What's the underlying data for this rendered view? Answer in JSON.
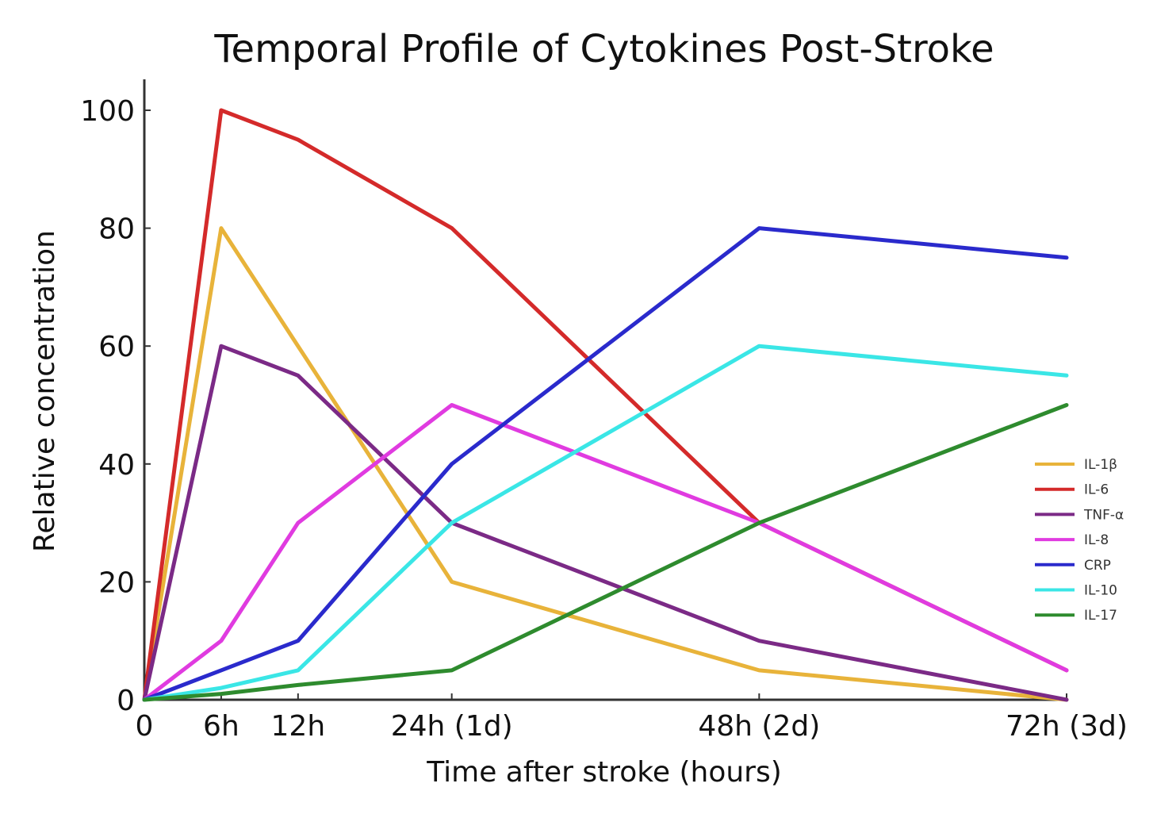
{
  "chart_data": {
    "type": "line",
    "title": "Temporal Profile of Cytokines Post-Stroke",
    "xlabel": "Time after stroke (hours)",
    "ylabel": "Relative concentration",
    "x": [
      0,
      6,
      12,
      24,
      48,
      72
    ],
    "x_tick_labels": [
      "0",
      "6h",
      "12h",
      "24h (1d)",
      "48h (2d)",
      "72h (3d)"
    ],
    "y_ticks": [
      0,
      20,
      40,
      60,
      80,
      100
    ],
    "xlim": [
      0,
      72
    ],
    "ylim": [
      0,
      105
    ],
    "grid": false,
    "legend_position": "center-right",
    "series": [
      {
        "name": "IL-1β",
        "color": "#E8B33A",
        "values": [
          0,
          80,
          60,
          20,
          5,
          0
        ]
      },
      {
        "name": "IL-6",
        "color": "#D42A2A",
        "values": [
          0,
          100,
          95,
          80,
          30,
          5
        ]
      },
      {
        "name": "TNF-α",
        "color": "#7B2A86",
        "values": [
          0,
          60,
          55,
          30,
          10,
          0
        ]
      },
      {
        "name": "IL-8",
        "color": "#E03BE0",
        "values": [
          0,
          10,
          30,
          50,
          30,
          5
        ]
      },
      {
        "name": "CRP",
        "color": "#2A2ACC",
        "values": [
          0,
          5,
          10,
          40,
          80,
          75
        ]
      },
      {
        "name": "IL-10",
        "color": "#3AE6E6",
        "values": [
          0,
          2,
          5,
          30,
          60,
          55
        ]
      },
      {
        "name": "IL-17",
        "color": "#2E8B2E",
        "values": [
          0,
          1,
          2.5,
          5,
          30,
          50
        ]
      }
    ]
  }
}
